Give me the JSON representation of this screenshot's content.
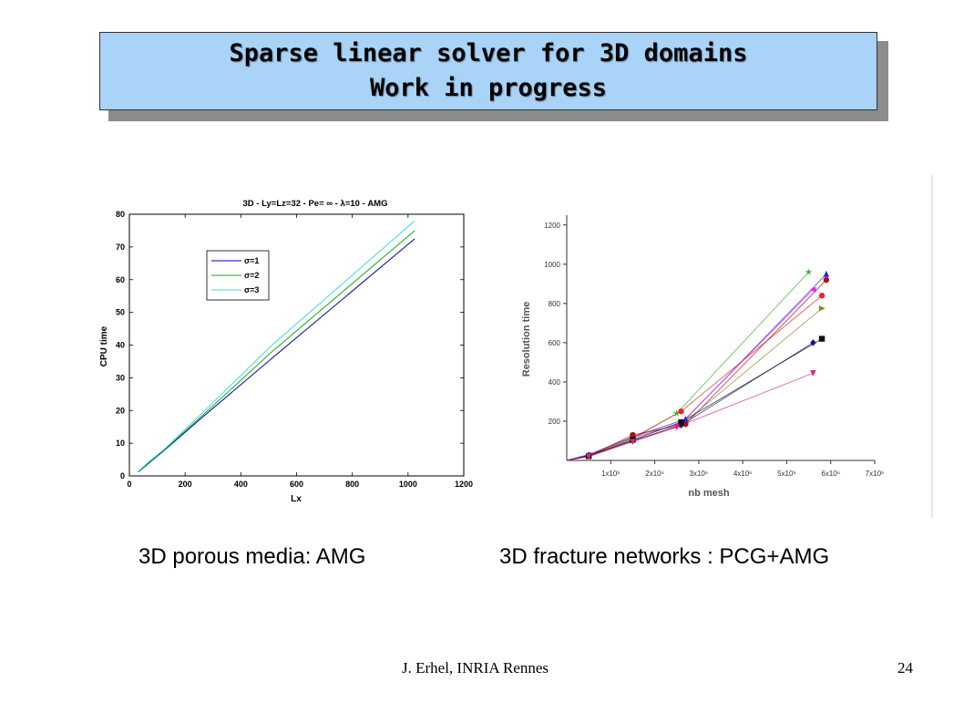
{
  "slide": {
    "title_line1": "Sparse linear solver for 3D domains",
    "title_line2": "Work in progress",
    "caption_left": "3D porous media: AMG",
    "caption_right": "3D fracture networks : PCG+AMG",
    "footer_author": "J. Erhel, INRIA Rennes",
    "page_number": "24"
  },
  "chart_data": [
    {
      "type": "line",
      "title": "3D - Ly=Lz=32 - Pe=  ∞ -  λ=10 - AMG",
      "xlabel": "Lx",
      "ylabel": "CPU time",
      "xlim": [
        0,
        1200
      ],
      "ylim": [
        0,
        80
      ],
      "xticks": [
        "0",
        "200",
        "400",
        "600",
        "800",
        "1000",
        "1200"
      ],
      "yticks": [
        "0",
        "10",
        "20",
        "30",
        "40",
        "50",
        "60",
        "70",
        "80"
      ],
      "legend_position": "top-left",
      "grid": false,
      "series": [
        {
          "name": "σ=1",
          "color": "#0000aa",
          "x": [
            32,
            64,
            128,
            256,
            512,
            1024
          ],
          "y": [
            1.2,
            3.5,
            8.0,
            17.5,
            36.0,
            72.5
          ]
        },
        {
          "name": "σ=2",
          "color": "#1aaa1a",
          "x": [
            32,
            64,
            128,
            256,
            512,
            1024
          ],
          "y": [
            1.3,
            3.7,
            8.2,
            18.0,
            38.0,
            75.0
          ]
        },
        {
          "name": "σ=3",
          "color": "#33dddd",
          "x": [
            32,
            64,
            128,
            256,
            512,
            1024
          ],
          "y": [
            1.4,
            3.9,
            8.4,
            18.8,
            40.0,
            78.0
          ]
        }
      ]
    },
    {
      "type": "scatter",
      "xlabel": "nb mesh",
      "ylabel": "Resolution time",
      "xlim": [
        0,
        7000000
      ],
      "ylim": [
        0,
        1250
      ],
      "xticks": [
        "1x10⁶",
        "2x10⁶",
        "3x10⁶",
        "4x10⁶",
        "5x10⁶",
        "6x10⁶",
        "7x10⁶"
      ],
      "yticks": [
        "200",
        "400",
        "600",
        "800",
        "1000",
        "1200"
      ],
      "grid": false,
      "series": [
        {
          "color": "#2db82d",
          "marker": "star",
          "x": [
            0,
            500000,
            1500000,
            2500000,
            5500000
          ],
          "y": [
            0,
            25,
            110,
            240,
            960
          ]
        },
        {
          "color": "#2222dd",
          "marker": "triangle",
          "x": [
            0,
            500000,
            1500000,
            2700000,
            5900000
          ],
          "y": [
            0,
            30,
            120,
            210,
            950
          ]
        },
        {
          "color": "#ee22ee",
          "marker": "triangle-left",
          "x": [
            0,
            500000,
            1500000,
            2600000,
            5600000
          ],
          "y": [
            0,
            28,
            115,
            190,
            870
          ]
        },
        {
          "color": "#ee2222",
          "marker": "circle",
          "x": [
            0,
            500000,
            1500000,
            2600000,
            5800000
          ],
          "y": [
            0,
            25,
            115,
            250,
            840
          ]
        },
        {
          "color": "#aa1111",
          "marker": "circle",
          "x": [
            0,
            500000,
            1500000,
            2700000,
            5900000
          ],
          "y": [
            0,
            22,
            130,
            185,
            920
          ]
        },
        {
          "color": "#888822",
          "marker": "triangle-right",
          "x": [
            0,
            500000,
            1500000,
            2600000,
            5800000
          ],
          "y": [
            0,
            20,
            100,
            180,
            775
          ]
        },
        {
          "color": "#111188",
          "marker": "diamond",
          "x": [
            0,
            500000,
            1500000,
            2600000,
            5600000
          ],
          "y": [
            0,
            25,
            100,
            180,
            600
          ]
        },
        {
          "color": "#111111",
          "marker": "square",
          "x": [
            0,
            500000,
            1500000,
            2600000,
            5800000
          ],
          "y": [
            0,
            22,
            105,
            195,
            620
          ]
        },
        {
          "color": "#dd2288",
          "marker": "triangle-down",
          "x": [
            0,
            500000,
            1500000,
            2500000,
            5600000
          ],
          "y": [
            0,
            20,
            95,
            170,
            445
          ]
        }
      ]
    }
  ]
}
